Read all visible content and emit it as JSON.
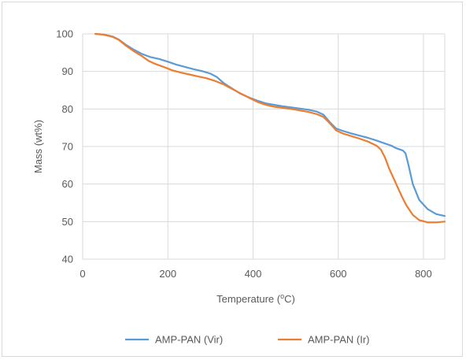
{
  "chart_data": {
    "type": "line",
    "title": "",
    "xlabel": "Temperature (",
    "xlabel_sup": "o",
    "xlabel_unit": "C)",
    "ylabel": "Mass (wt%)",
    "xlim": [
      0,
      850
    ],
    "ylim": [
      40,
      100
    ],
    "xticks": [
      0,
      200,
      400,
      600,
      800
    ],
    "yticks": [
      40,
      50,
      60,
      70,
      80,
      90,
      100
    ],
    "grid": {
      "horizontal": true,
      "vertical": true
    },
    "legend_position": "bottom",
    "series": [
      {
        "name": "AMP-PAN (Vir)",
        "color": "#5b9bd5",
        "x": [
          30,
          50,
          70,
          85,
          100,
          120,
          140,
          160,
          180,
          200,
          220,
          240,
          260,
          280,
          300,
          315,
          330,
          350,
          370,
          390,
          410,
          430,
          450,
          470,
          490,
          510,
          530,
          550,
          565,
          580,
          595,
          610,
          630,
          650,
          670,
          690,
          710,
          725,
          735,
          745,
          752,
          758,
          765,
          775,
          790,
          810,
          830,
          850
        ],
        "y": [
          100,
          99.8,
          99.3,
          98.5,
          97.2,
          95.8,
          94.6,
          93.8,
          93.3,
          92.6,
          91.8,
          91.2,
          90.6,
          90.1,
          89.4,
          88.5,
          87,
          85.5,
          84.1,
          83.1,
          82.2,
          81.5,
          81.1,
          80.7,
          80.4,
          80.1,
          79.8,
          79.3,
          78.5,
          76.5,
          74.8,
          74.2,
          73.5,
          72.9,
          72.3,
          71.6,
          70.8,
          70.2,
          69.6,
          69.2,
          68.9,
          68.2,
          65,
          60,
          55.8,
          53.3,
          52,
          51.5
        ]
      },
      {
        "name": "AMP-PAN (Ir)",
        "color": "#ed7d31",
        "x": [
          30,
          50,
          70,
          85,
          100,
          120,
          140,
          155,
          170,
          190,
          210,
          230,
          250,
          270,
          290,
          310,
          330,
          350,
          370,
          390,
          410,
          430,
          450,
          470,
          490,
          510,
          530,
          550,
          565,
          580,
          595,
          610,
          630,
          650,
          670,
          690,
          700,
          710,
          720,
          730,
          740,
          750,
          760,
          775,
          790,
          810,
          830,
          850
        ],
        "y": [
          100,
          99.8,
          99.2,
          98.4,
          97,
          95.4,
          94,
          92.8,
          92,
          91.2,
          90.3,
          89.7,
          89.2,
          88.7,
          88.2,
          87.5,
          86.6,
          85.4,
          84.2,
          83,
          81.9,
          81.1,
          80.6,
          80.3,
          80,
          79.6,
          79.2,
          78.6,
          77.9,
          76.2,
          74.3,
          73.5,
          72.8,
          72.1,
          71.3,
          70.2,
          69.2,
          67,
          64,
          61.5,
          59,
          56.5,
          54.3,
          51.8,
          50.4,
          49.8,
          49.8,
          50
        ]
      }
    ]
  }
}
